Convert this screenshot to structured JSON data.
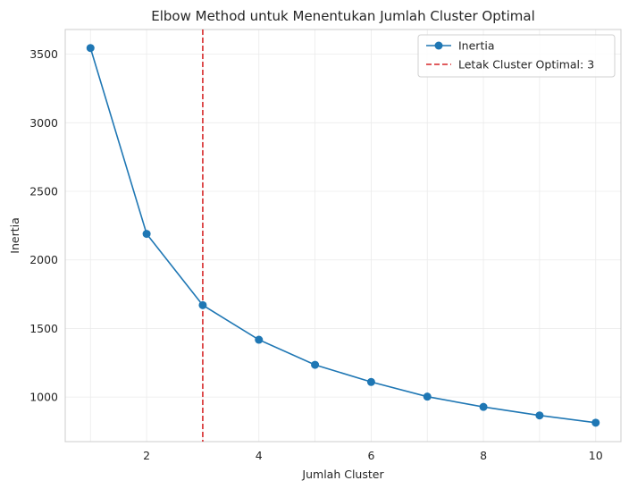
{
  "chart_data": {
    "type": "line",
    "title": "Elbow Method untuk Menentukan Jumlah Cluster Optimal",
    "xlabel": "Jumlah Cluster",
    "ylabel": "Inertia",
    "xlim": [
      0.55,
      10.45
    ],
    "ylim": [
      675,
      3680
    ],
    "xticks": [
      2,
      4,
      6,
      8,
      10
    ],
    "yticks": [
      1000,
      1500,
      2000,
      2500,
      3000,
      3500
    ],
    "grid": true,
    "legend_position": "top-right",
    "series": [
      {
        "name": "Inertia",
        "color": "#1f77b4",
        "marker": "circle",
        "x": [
          1,
          2,
          3,
          4,
          5,
          6,
          7,
          8,
          9,
          10
        ],
        "values": [
          3545,
          2190,
          1670,
          1418,
          1235,
          1110,
          1003,
          928,
          866,
          813
        ]
      }
    ],
    "reference_lines": [
      {
        "name": "Letak Cluster Optimal: 3",
        "orientation": "vertical",
        "x": 3,
        "color": "#d62728",
        "style": "dashed"
      }
    ]
  }
}
